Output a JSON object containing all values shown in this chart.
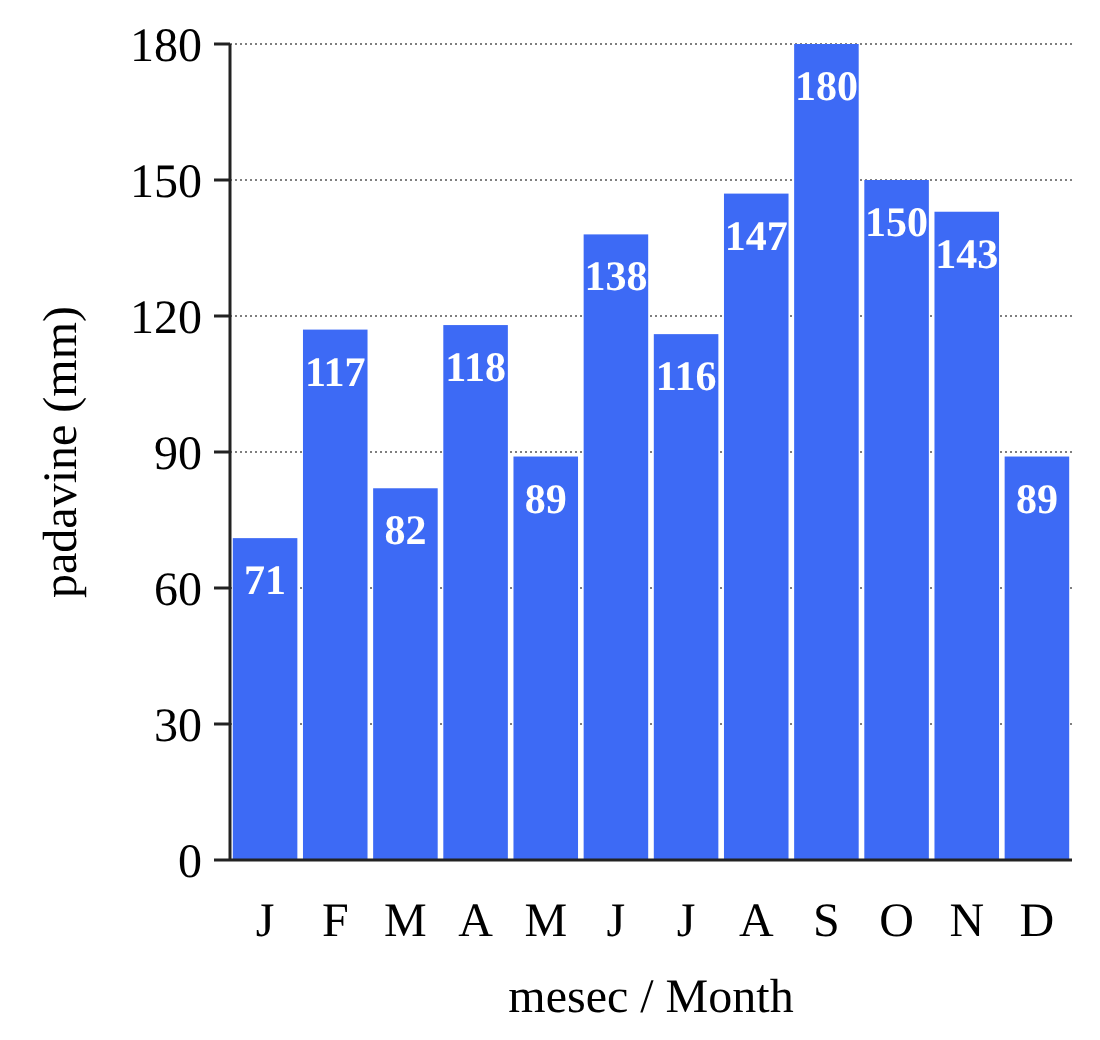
{
  "chart_data": {
    "type": "bar",
    "xlabel": "mesec / Month",
    "ylabel": "padavine (mm)",
    "categories": [
      "J",
      "F",
      "M",
      "A",
      "M",
      "J",
      "J",
      "A",
      "S",
      "O",
      "N",
      "D"
    ],
    "values": [
      71,
      117,
      82,
      118,
      89,
      138,
      116,
      147,
      180,
      150,
      143,
      89
    ],
    "color": "#3d6af5",
    "ylim": [
      0,
      180
    ],
    "yticks": [
      0,
      30,
      60,
      90,
      120,
      150,
      180
    ],
    "grid": "y",
    "data_labels": true
  }
}
